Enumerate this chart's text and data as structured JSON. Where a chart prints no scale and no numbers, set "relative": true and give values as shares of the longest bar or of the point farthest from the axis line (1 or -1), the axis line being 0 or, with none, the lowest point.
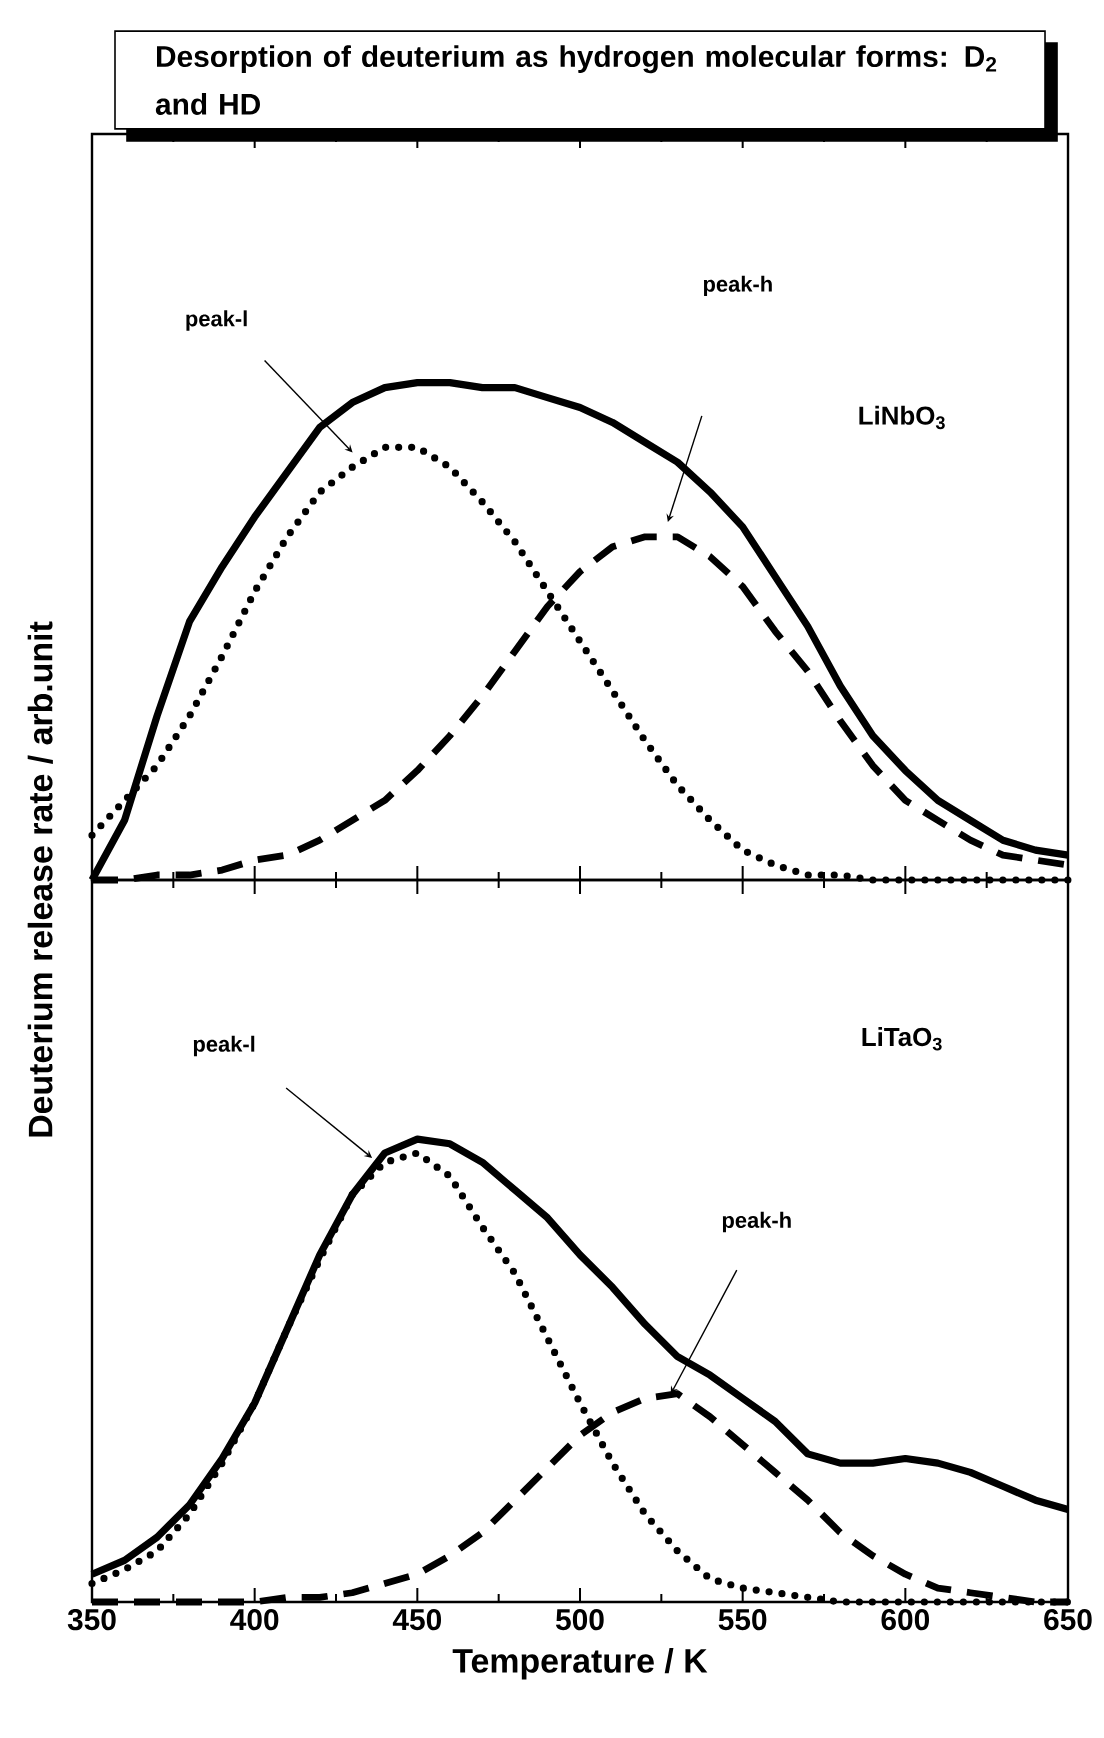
{
  "chart_data": [
    {
      "type": "line",
      "title": "Desorption of deuterium as hydrogen molecular forms: D$_{2}$ and HD",
      "relative": true,
      "tick_labels": false,
      "xlim": [
        350,
        650
      ],
      "xticks": [
        350,
        400,
        450,
        500,
        550,
        600,
        650
      ],
      "x": [
        350,
        360,
        370,
        380,
        390,
        400,
        410,
        420,
        430,
        440,
        450,
        460,
        470,
        480,
        490,
        500,
        510,
        520,
        530,
        540,
        550,
        560,
        570,
        580,
        590,
        600,
        610,
        620,
        630,
        640,
        650
      ],
      "series": [
        {
          "color": "#000000",
          "line_style": "solid",
          "values": [
            0,
            0.12,
            0.33,
            0.52,
            0.63,
            0.73,
            0.82,
            0.91,
            0.96,
            0.99,
            1.0,
            1.0,
            0.99,
            0.99,
            0.97,
            0.95,
            0.92,
            0.88,
            0.84,
            0.78,
            0.71,
            0.61,
            0.51,
            0.39,
            0.29,
            0.22,
            0.16,
            0.12,
            0.08,
            0.06,
            0.05
          ]
        },
        {
          "color": "#000000",
          "line_style": "dotted",
          "values": [
            0.09,
            0.16,
            0.23,
            0.33,
            0.45,
            0.58,
            0.69,
            0.78,
            0.83,
            0.87,
            0.87,
            0.83,
            0.76,
            0.68,
            0.58,
            0.48,
            0.38,
            0.28,
            0.19,
            0.12,
            0.06,
            0.03,
            0.01,
            0.01,
            0,
            0,
            0,
            0,
            0,
            0,
            0
          ]
        },
        {
          "color": "#000000",
          "line_style": "dashed",
          "values": [
            0,
            0,
            0.01,
            0.01,
            0.02,
            0.04,
            0.05,
            0.08,
            0.12,
            0.16,
            0.22,
            0.29,
            0.37,
            0.46,
            0.55,
            0.62,
            0.67,
            0.69,
            0.69,
            0.65,
            0.59,
            0.5,
            0.42,
            0.32,
            0.23,
            0.16,
            0.12,
            0.08,
            0.05,
            0.04,
            0.03
          ]
        }
      ],
      "annotations": [
        "peak-l",
        "peak-h",
        "LiNbO$_{3}$"
      ]
    },
    {
      "type": "line",
      "xlabel": "Temperature / K",
      "ylabel": "Deuterium release rate / arb.unit",
      "relative": true,
      "tick_labels": "x",
      "xlim": [
        350,
        650
      ],
      "xticks": [
        350,
        400,
        450,
        500,
        550,
        600,
        650
      ],
      "x": [
        350,
        360,
        370,
        380,
        390,
        400,
        410,
        420,
        430,
        440,
        450,
        460,
        470,
        480,
        490,
        500,
        510,
        520,
        530,
        540,
        550,
        560,
        570,
        580,
        590,
        600,
        610,
        620,
        630,
        640,
        650
      ],
      "series": [
        {
          "color": "#000000",
          "line_style": "solid",
          "values": [
            0.06,
            0.09,
            0.14,
            0.21,
            0.31,
            0.43,
            0.59,
            0.75,
            0.88,
            0.97,
            1.0,
            0.99,
            0.95,
            0.89,
            0.83,
            0.75,
            0.68,
            0.6,
            0.53,
            0.49,
            0.44,
            0.39,
            0.32,
            0.3,
            0.3,
            0.31,
            0.3,
            0.28,
            0.25,
            0.22,
            0.2
          ]
        },
        {
          "color": "#000000",
          "line_style": "dotted",
          "values": [
            0.04,
            0.07,
            0.11,
            0.19,
            0.3,
            0.43,
            0.59,
            0.74,
            0.88,
            0.95,
            0.97,
            0.92,
            0.81,
            0.71,
            0.57,
            0.43,
            0.3,
            0.19,
            0.11,
            0.05,
            0.03,
            0.02,
            0.01,
            0,
            0,
            0,
            0,
            0,
            0,
            0,
            0
          ]
        },
        {
          "color": "#000000",
          "line_style": "dashed",
          "values": [
            0,
            0,
            0,
            0,
            0,
            0,
            0.01,
            0.01,
            0.02,
            0.04,
            0.06,
            0.1,
            0.15,
            0.22,
            0.29,
            0.36,
            0.41,
            0.44,
            0.45,
            0.4,
            0.34,
            0.28,
            0.22,
            0.15,
            0.1,
            0.06,
            0.03,
            0.02,
            0.01,
            0,
            0
          ]
        }
      ],
      "annotations": [
        "peak-l",
        "peak-h",
        "LiTaO$_{3}$"
      ]
    }
  ]
}
